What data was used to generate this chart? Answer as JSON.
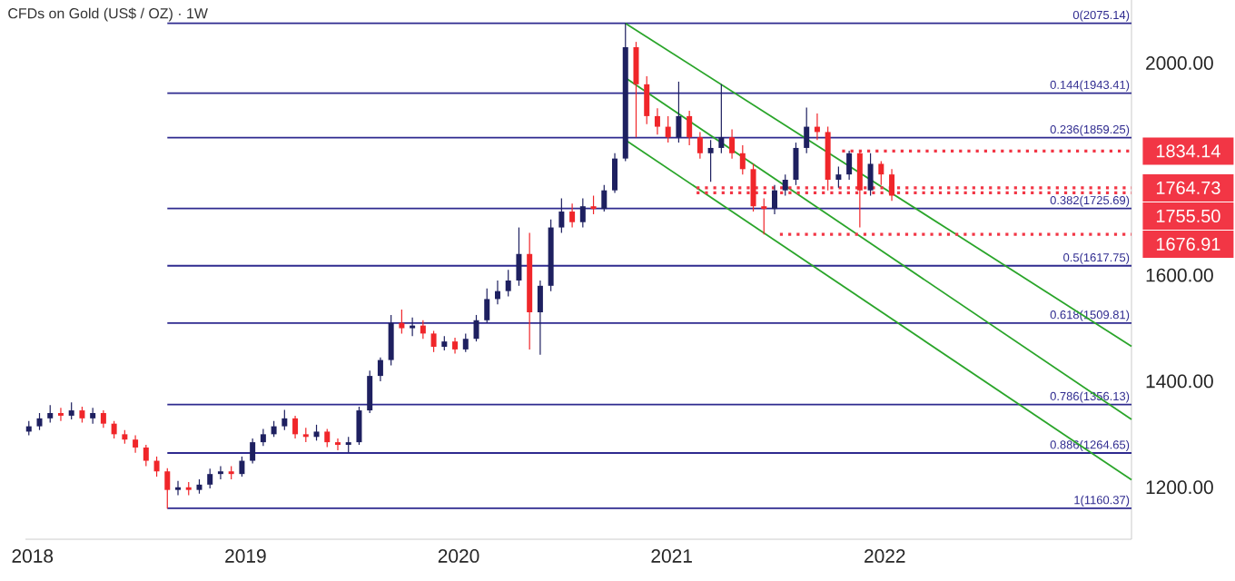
{
  "chart_data": {
    "type": "candlestick",
    "title": "CFDs on Gold (US$ / OZ) · 1W",
    "x": [
      2017.983,
      2018.033,
      2018.083,
      2018.133,
      2018.183,
      2018.233,
      2018.283,
      2018.333,
      2018.383,
      2018.433,
      2018.483,
      2018.533,
      2018.583,
      2018.633,
      2018.683,
      2018.733,
      2018.783,
      2018.833,
      2018.883,
      2018.933,
      2018.983,
      2019.033,
      2019.083,
      2019.133,
      2019.183,
      2019.233,
      2019.283,
      2019.333,
      2019.383,
      2019.433,
      2019.483,
      2019.533,
      2019.583,
      2019.633,
      2019.683,
      2019.733,
      2019.783,
      2019.833,
      2019.883,
      2019.933,
      2019.983,
      2020.033,
      2020.083,
      2020.133,
      2020.183,
      2020.233,
      2020.283,
      2020.333,
      2020.383,
      2020.433,
      2020.483,
      2020.533,
      2020.583,
      2020.633,
      2020.683,
      2020.733,
      2020.783,
      2020.833,
      2020.883,
      2020.933,
      2020.983,
      2021.033,
      2021.083,
      2021.133,
      2021.183,
      2021.233,
      2021.283,
      2021.333,
      2021.383,
      2021.433,
      2021.483,
      2021.533,
      2021.583,
      2021.633,
      2021.683,
      2021.733,
      2021.783,
      2021.833,
      2021.883,
      2021.933,
      2021.983,
      2022.033
    ],
    "ohlc": [
      [
        1305,
        1325,
        1298,
        1315
      ],
      [
        1315,
        1340,
        1308,
        1330
      ],
      [
        1330,
        1355,
        1322,
        1340
      ],
      [
        1340,
        1350,
        1325,
        1335
      ],
      [
        1335,
        1360,
        1328,
        1345
      ],
      [
        1345,
        1352,
        1322,
        1330
      ],
      [
        1330,
        1350,
        1320,
        1340
      ],
      [
        1340,
        1345,
        1312,
        1320
      ],
      [
        1320,
        1325,
        1292,
        1300
      ],
      [
        1300,
        1308,
        1282,
        1290
      ],
      [
        1290,
        1298,
        1265,
        1275
      ],
      [
        1275,
        1280,
        1240,
        1250
      ],
      [
        1250,
        1258,
        1220,
        1230
      ],
      [
        1230,
        1236,
        1160,
        1195
      ],
      [
        1195,
        1212,
        1185,
        1200
      ],
      [
        1200,
        1210,
        1185,
        1195
      ],
      [
        1195,
        1215,
        1188,
        1205
      ],
      [
        1205,
        1235,
        1198,
        1225
      ],
      [
        1225,
        1240,
        1215,
        1230
      ],
      [
        1230,
        1240,
        1215,
        1225
      ],
      [
        1225,
        1258,
        1220,
        1250
      ],
      [
        1250,
        1292,
        1245,
        1285
      ],
      [
        1285,
        1310,
        1278,
        1300
      ],
      [
        1300,
        1325,
        1295,
        1315
      ],
      [
        1315,
        1346,
        1308,
        1330
      ],
      [
        1330,
        1335,
        1292,
        1300
      ],
      [
        1300,
        1312,
        1285,
        1295
      ],
      [
        1295,
        1318,
        1288,
        1305
      ],
      [
        1305,
        1310,
        1276,
        1285
      ],
      [
        1285,
        1292,
        1270,
        1280
      ],
      [
        1280,
        1295,
        1266,
        1285
      ],
      [
        1285,
        1352,
        1280,
        1345
      ],
      [
        1345,
        1420,
        1340,
        1410
      ],
      [
        1410,
        1445,
        1400,
        1440
      ],
      [
        1440,
        1525,
        1430,
        1510
      ],
      [
        1510,
        1535,
        1490,
        1500
      ],
      [
        1500,
        1520,
        1485,
        1505
      ],
      [
        1505,
        1515,
        1480,
        1490
      ],
      [
        1490,
        1495,
        1455,
        1465
      ],
      [
        1465,
        1485,
        1458,
        1475
      ],
      [
        1475,
        1482,
        1452,
        1460
      ],
      [
        1460,
        1490,
        1455,
        1480
      ],
      [
        1480,
        1525,
        1475,
        1515
      ],
      [
        1515,
        1575,
        1510,
        1555
      ],
      [
        1555,
        1590,
        1545,
        1570
      ],
      [
        1570,
        1610,
        1560,
        1590
      ],
      [
        1590,
        1690,
        1580,
        1640
      ],
      [
        1640,
        1680,
        1460,
        1530
      ],
      [
        1530,
        1590,
        1450,
        1580
      ],
      [
        1580,
        1705,
        1570,
        1690
      ],
      [
        1690,
        1745,
        1680,
        1720
      ],
      [
        1720,
        1735,
        1690,
        1700
      ],
      [
        1700,
        1745,
        1690,
        1730
      ],
      [
        1730,
        1750,
        1715,
        1725
      ],
      [
        1725,
        1770,
        1720,
        1760
      ],
      [
        1760,
        1830,
        1755,
        1820
      ],
      [
        1820,
        2075,
        1815,
        2030
      ],
      [
        2030,
        2040,
        1860,
        1960
      ],
      [
        1960,
        1975,
        1885,
        1900
      ],
      [
        1900,
        1915,
        1865,
        1880
      ],
      [
        1880,
        1900,
        1850,
        1860
      ],
      [
        1860,
        1965,
        1850,
        1900
      ],
      [
        1900,
        1910,
        1845,
        1860
      ],
      [
        1860,
        1870,
        1820,
        1830
      ],
      [
        1830,
        1855,
        1776,
        1840
      ],
      [
        1840,
        1960,
        1830,
        1860
      ],
      [
        1860,
        1875,
        1820,
        1830
      ],
      [
        1830,
        1845,
        1790,
        1800
      ],
      [
        1800,
        1810,
        1720,
        1730
      ],
      [
        1730,
        1745,
        1677,
        1725
      ],
      [
        1725,
        1770,
        1715,
        1760
      ],
      [
        1760,
        1790,
        1750,
        1780
      ],
      [
        1780,
        1850,
        1770,
        1840
      ],
      [
        1840,
        1916,
        1830,
        1880
      ],
      [
        1880,
        1905,
        1855,
        1870
      ],
      [
        1870,
        1880,
        1760,
        1780
      ],
      [
        1780,
        1805,
        1765,
        1790
      ],
      [
        1790,
        1835,
        1780,
        1830
      ],
      [
        1830,
        1835,
        1690,
        1760
      ],
      [
        1760,
        1830,
        1750,
        1810
      ],
      [
        1810,
        1815,
        1770,
        1790
      ],
      [
        1790,
        1800,
        1740,
        1750
      ]
    ],
    "colors": [
      "#1e2060",
      "#1e2060",
      "#1e2060",
      "#f0262a",
      "#1e2060",
      "#f0262a",
      "#1e2060",
      "#f0262a",
      "#f0262a",
      "#f0262a",
      "#f0262a",
      "#f0262a",
      "#f0262a",
      "#f0262a",
      "#1e2060",
      "#f0262a",
      "#1e2060",
      "#1e2060",
      "#1e2060",
      "#f0262a",
      "#1e2060",
      "#1e2060",
      "#1e2060",
      "#1e2060",
      "#1e2060",
      "#f0262a",
      "#f0262a",
      "#1e2060",
      "#f0262a",
      "#f0262a",
      "#1e2060",
      "#1e2060",
      "#1e2060",
      "#1e2060",
      "#1e2060",
      "#f0262a",
      "#1e2060",
      "#f0262a",
      "#f0262a",
      "#1e2060",
      "#f0262a",
      "#1e2060",
      "#1e2060",
      "#1e2060",
      "#1e2060",
      "#1e2060",
      "#1e2060",
      "#f0262a",
      "#1e2060",
      "#1e2060",
      "#1e2060",
      "#f0262a",
      "#1e2060",
      "#f0262a",
      "#1e2060",
      "#1e2060",
      "#1e2060",
      "#f0262a",
      "#f0262a",
      "#f0262a",
      "#f0262a",
      "#1e2060",
      "#f0262a",
      "#f0262a",
      "#1e2060",
      "#1e2060",
      "#f0262a",
      "#f0262a",
      "#f0262a",
      "#f0262a",
      "#1e2060",
      "#1e2060",
      "#1e2060",
      "#1e2060",
      "#f0262a",
      "#f0262a",
      "#1e2060",
      "#1e2060",
      "#f0262a",
      "#1e2060",
      "#f0262a",
      "#f0262a"
    ],
    "xlim": [
      2017.967,
      2023.158
    ],
    "ylim": [
      1102,
      2119
    ],
    "xticks": [
      2018,
      2019,
      2020,
      2021,
      2022
    ],
    "yticks": [
      {
        "value": 1200,
        "label": "1200.00"
      },
      {
        "value": 1400,
        "label": "1400.00"
      },
      {
        "value": 1600,
        "label": "1600.00"
      },
      {
        "value": 2000,
        "label": "2000.00"
      }
    ],
    "series": [
      {
        "type": "line",
        "name": "0(2075.14)",
        "color": "#2e2a8f",
        "x": [
          2018.633,
          2023.158
        ],
        "values": [
          2075.14,
          2075.14
        ]
      },
      {
        "type": "line",
        "name": "0.144(1943.41)",
        "color": "#2e2a8f",
        "x": [
          2018.633,
          2023.158
        ],
        "values": [
          1943.41,
          1943.41
        ]
      },
      {
        "type": "line",
        "name": "0.236(1859.25)",
        "color": "#2e2a8f",
        "x": [
          2018.633,
          2023.158
        ],
        "values": [
          1859.25,
          1859.25
        ]
      },
      {
        "type": "line",
        "name": "0.382(1725.69)",
        "color": "#2e2a8f",
        "x": [
          2018.633,
          2023.158
        ],
        "values": [
          1725.69,
          1725.69
        ]
      },
      {
        "type": "line",
        "name": "0.5(1617.75)",
        "color": "#2e2a8f",
        "x": [
          2018.633,
          2023.158
        ],
        "values": [
          1617.75,
          1617.75
        ]
      },
      {
        "type": "line",
        "name": "0.618(1509.81)",
        "color": "#2e2a8f",
        "x": [
          2018.633,
          2023.158
        ],
        "values": [
          1509.81,
          1509.81
        ]
      },
      {
        "type": "line",
        "name": "0.786(1356.13)",
        "color": "#2e2a8f",
        "x": [
          2018.633,
          2023.158
        ],
        "values": [
          1356.13,
          1356.13
        ]
      },
      {
        "type": "line",
        "name": "0.886(1264.65)",
        "color": "#2e2a8f",
        "x": [
          2018.633,
          2023.158
        ],
        "values": [
          1264.65,
          1264.65
        ]
      },
      {
        "type": "line",
        "name": "1(1160.37)",
        "color": "#2e2a8f",
        "x": [
          2018.633,
          2023.158
        ],
        "values": [
          1160.37,
          1160.37
        ]
      },
      {
        "type": "line",
        "color": "#2aa52a",
        "x": [
          2020.783,
          2023.158
        ],
        "values": [
          2075,
          1466
        ]
      },
      {
        "type": "line",
        "color": "#2aa52a",
        "x": [
          2020.783,
          2023.158
        ],
        "values": [
          1972,
          1328
        ]
      },
      {
        "type": "line",
        "color": "#2aa52a",
        "x": [
          2020.783,
          2023.158
        ],
        "values": [
          1855,
          1214
        ]
      },
      {
        "type": "line",
        "name": "1834.14",
        "color": "#f23645",
        "line_style": "dotted",
        "x": [
          2021.8,
          2023.158
        ],
        "values": [
          1834.14,
          1834.14
        ]
      },
      {
        "type": "line",
        "name": "1764.73",
        "color": "#f23645",
        "line_style": "dotted",
        "x": [
          2021.117,
          2023.158
        ],
        "values": [
          1764.73,
          1764.73
        ]
      },
      {
        "type": "line",
        "name": "1755.50",
        "color": "#f23645",
        "line_style": "dotted",
        "x": [
          2021.117,
          2023.158
        ],
        "values": [
          1755.5,
          1755.5
        ]
      },
      {
        "type": "line",
        "name": "1676.91",
        "color": "#f23645",
        "line_style": "dotted",
        "x": [
          2021.508,
          2023.158
        ],
        "values": [
          1676.91,
          1676.91
        ]
      }
    ]
  }
}
